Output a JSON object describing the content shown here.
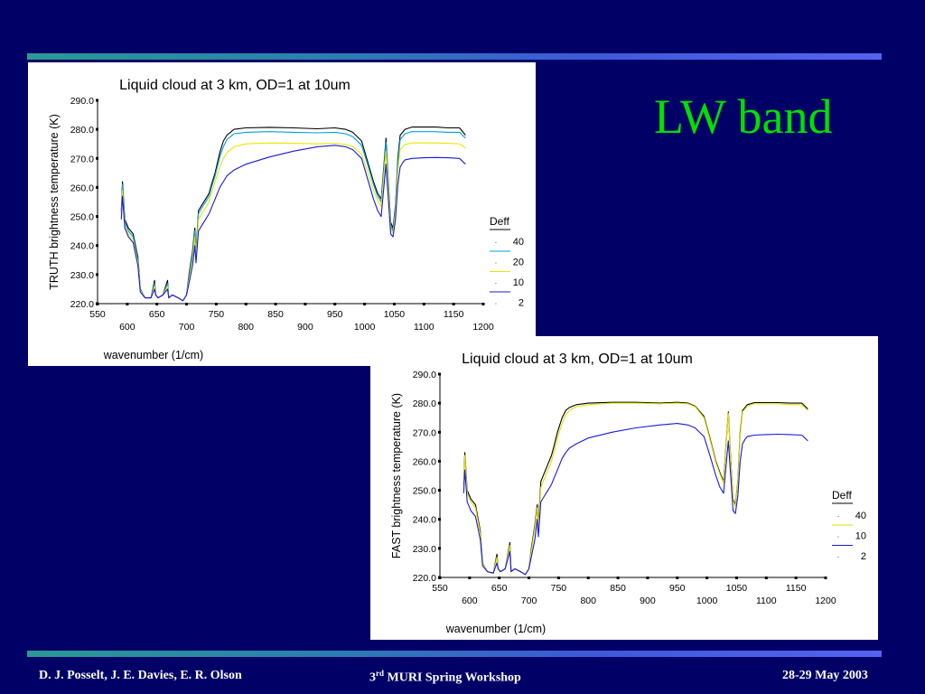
{
  "slide": {
    "title": "LW band",
    "footer_authors": "D. J. Posselt, J. E. Davies, E. R. Olson",
    "footer_workshop_ordinal": "3",
    "footer_workshop_suffix": "rd",
    "footer_workshop_rest": " MURI Spring Workshop",
    "footer_date": "28-29 May 2003",
    "accent_color": "#00e000",
    "background_color": "#000066"
  },
  "chart_data": [
    {
      "type": "line",
      "title": "Liquid cloud at 3 km, OD=1 at 10um",
      "xlabel": "wavenumber (1/cm)",
      "ylabel": "TRUTH brightness temperature (K)",
      "xlim": [
        550,
        1200
      ],
      "ylim": [
        220,
        290
      ],
      "x_ticks_upper": [
        "550",
        "650",
        "750",
        "850",
        "950",
        "1050",
        "1150"
      ],
      "x_ticks_lower": [
        "600",
        "700",
        "800",
        "900",
        "1000",
        "1100",
        "1200"
      ],
      "y_ticks": [
        "290.0",
        "280.0",
        "270.0",
        "260.0",
        "250.0",
        "240.0",
        "230.0",
        "220.0"
      ],
      "legend_title": "Deff",
      "legend_position": "right",
      "series": [
        {
          "name": "40",
          "color": "#000000",
          "x": [
            590,
            592,
            596,
            602,
            610,
            618,
            622,
            630,
            640,
            646,
            648,
            652,
            660,
            668,
            670,
            676,
            686,
            694,
            700,
            704,
            710,
            714,
            716,
            720,
            726,
            732,
            738,
            742,
            748,
            756,
            762,
            768,
            780,
            800,
            840,
            880,
            920,
            950,
            968,
            980,
            995,
            1005,
            1015,
            1022,
            1028,
            1032,
            1036,
            1040,
            1044,
            1048,
            1052,
            1056,
            1060,
            1064,
            1068,
            1080,
            1100,
            1120,
            1140,
            1160,
            1170
          ],
          "y": [
            252,
            262,
            249,
            246,
            244,
            236,
            225,
            222,
            222,
            228,
            223,
            222,
            223,
            228,
            222,
            223,
            222,
            221,
            223,
            230,
            238,
            246,
            238,
            252,
            254,
            256,
            258,
            261,
            265,
            272,
            276,
            278,
            280,
            280.5,
            280.7,
            280.5,
            280.2,
            280.5,
            280,
            279,
            276,
            269,
            262,
            258,
            256,
            266,
            277,
            262,
            248,
            246,
            254,
            270,
            278,
            279,
            280,
            280.8,
            280.8,
            280.8,
            280.5,
            280.5,
            278
          ]
        },
        {
          "name": "20",
          "color": "#00a0e0",
          "x": [
            590,
            592,
            596,
            602,
            610,
            618,
            622,
            630,
            640,
            646,
            648,
            652,
            660,
            668,
            670,
            676,
            686,
            694,
            700,
            704,
            710,
            714,
            716,
            720,
            726,
            732,
            738,
            742,
            748,
            756,
            762,
            768,
            780,
            800,
            840,
            880,
            920,
            950,
            968,
            980,
            995,
            1005,
            1015,
            1022,
            1028,
            1032,
            1036,
            1040,
            1044,
            1048,
            1052,
            1056,
            1060,
            1064,
            1068,
            1080,
            1100,
            1120,
            1140,
            1160,
            1170
          ],
          "y": [
            251,
            261,
            248,
            245,
            243,
            235,
            225,
            222,
            222,
            227,
            223,
            222,
            223,
            227,
            222,
            223,
            222,
            221,
            223,
            229,
            237,
            245,
            237,
            251,
            253,
            255,
            257,
            260,
            264,
            270.5,
            274,
            276.5,
            278.5,
            279,
            279.2,
            279,
            278.8,
            279,
            278.5,
            277.5,
            274.5,
            268,
            261,
            257,
            255,
            265,
            275.5,
            261,
            247,
            245,
            253,
            268.5,
            276.5,
            277.5,
            278.5,
            279.2,
            279.2,
            279.2,
            279,
            279,
            277
          ]
        },
        {
          "name": "10",
          "color": "#e8e800",
          "x": [
            590,
            592,
            596,
            602,
            610,
            618,
            622,
            630,
            640,
            646,
            648,
            652,
            660,
            668,
            670,
            676,
            686,
            694,
            700,
            704,
            710,
            714,
            716,
            720,
            726,
            732,
            738,
            742,
            748,
            756,
            762,
            768,
            780,
            800,
            840,
            880,
            920,
            950,
            968,
            980,
            995,
            1005,
            1015,
            1022,
            1028,
            1032,
            1036,
            1040,
            1044,
            1048,
            1052,
            1056,
            1060,
            1064,
            1068,
            1080,
            1100,
            1120,
            1140,
            1160,
            1170
          ],
          "y": [
            250,
            259,
            247,
            244,
            242,
            234,
            224.5,
            222,
            222,
            226,
            223,
            222,
            223,
            226,
            222,
            223,
            222,
            221,
            223,
            228,
            235,
            243,
            236,
            249,
            251,
            253,
            255,
            258,
            262,
            267,
            270,
            272,
            274,
            275,
            275.3,
            275.2,
            275,
            275.2,
            274.8,
            274,
            271.5,
            265.5,
            259,
            255.5,
            253.5,
            263,
            272.5,
            259.5,
            246,
            244,
            251.5,
            265.5,
            273,
            274,
            274.8,
            275.3,
            275.3,
            275.3,
            275.2,
            275,
            273.5
          ]
        },
        {
          "name": "2",
          "color": "#1818e0",
          "x": [
            590,
            592,
            596,
            602,
            610,
            618,
            622,
            630,
            640,
            646,
            648,
            652,
            660,
            668,
            670,
            676,
            686,
            694,
            700,
            704,
            710,
            714,
            716,
            720,
            726,
            732,
            738,
            742,
            748,
            756,
            762,
            768,
            780,
            800,
            840,
            880,
            920,
            950,
            968,
            980,
            995,
            1005,
            1015,
            1022,
            1028,
            1032,
            1036,
            1040,
            1044,
            1048,
            1052,
            1056,
            1060,
            1064,
            1068,
            1080,
            1100,
            1120,
            1140,
            1160,
            1170
          ],
          "y": [
            249,
            257,
            246,
            243,
            241,
            233,
            224,
            222,
            222,
            225,
            223,
            222,
            223,
            225,
            222,
            223,
            222,
            221,
            223,
            227,
            233,
            240,
            234,
            245,
            247,
            249,
            251,
            253,
            256,
            260,
            262,
            264,
            266,
            268,
            270.5,
            272.5,
            274,
            274.5,
            274,
            273,
            270,
            263,
            256,
            252,
            250,
            259,
            268,
            256,
            244,
            243,
            249,
            261,
            267,
            268.5,
            269.5,
            270,
            270.2,
            270.3,
            270.2,
            270,
            268
          ]
        }
      ]
    },
    {
      "type": "line",
      "title": "Liquid cloud at 3 km, OD=1 at 10um",
      "xlabel": "wavenumber (1/cm)",
      "ylabel": "FAST brightness temperature (K)",
      "xlim": [
        550,
        1200
      ],
      "ylim": [
        220,
        290
      ],
      "x_ticks_upper": [
        "550",
        "650",
        "750",
        "850",
        "950",
        "1050",
        "1150"
      ],
      "x_ticks_lower": [
        "600",
        "700",
        "800",
        "900",
        "1000",
        "1100",
        "1200"
      ],
      "y_ticks": [
        "290.0",
        "280.0",
        "270.0",
        "260.0",
        "250.0",
        "240.0",
        "230.0",
        "220.0"
      ],
      "legend_title": "Deff",
      "legend_position": "right",
      "series": [
        {
          "name": "40",
          "color": "#000000",
          "x": [
            590,
            592,
            596,
            602,
            610,
            618,
            622,
            630,
            640,
            646,
            648,
            652,
            660,
            668,
            670,
            676,
            686,
            694,
            700,
            704,
            710,
            714,
            716,
            720,
            726,
            732,
            738,
            742,
            748,
            756,
            762,
            768,
            780,
            800,
            840,
            880,
            920,
            950,
            968,
            980,
            995,
            1005,
            1015,
            1022,
            1028,
            1032,
            1036,
            1040,
            1044,
            1048,
            1052,
            1056,
            1060,
            1064,
            1068,
            1080,
            1100,
            1120,
            1140,
            1160,
            1170
          ],
          "y": [
            252,
            263,
            250,
            247,
            245,
            236,
            225,
            222,
            221.5,
            228,
            223,
            222,
            223,
            232,
            222,
            223,
            222,
            221,
            223,
            230,
            238,
            245,
            238,
            253,
            256,
            259,
            262,
            265,
            270,
            275,
            277.5,
            278.5,
            279.5,
            280,
            280.3,
            280.3,
            280,
            280.3,
            280,
            279,
            275.5,
            268,
            260,
            256,
            253,
            265,
            277,
            261,
            247,
            245,
            253,
            270,
            277.5,
            278.5,
            279.5,
            280.2,
            280.2,
            280.2,
            280,
            280,
            278
          ]
        },
        {
          "name": "10",
          "color": "#e0e000",
          "x": [
            590,
            592,
            596,
            602,
            610,
            618,
            622,
            630,
            640,
            646,
            648,
            652,
            660,
            668,
            670,
            676,
            686,
            694,
            700,
            704,
            710,
            714,
            716,
            720,
            726,
            732,
            738,
            742,
            748,
            756,
            762,
            768,
            780,
            800,
            840,
            880,
            920,
            950,
            968,
            980,
            995,
            1005,
            1015,
            1022,
            1028,
            1032,
            1036,
            1040,
            1044,
            1048,
            1052,
            1056,
            1060,
            1064,
            1068,
            1080,
            1100,
            1120,
            1140,
            1160,
            1170
          ],
          "y": [
            251,
            262,
            249,
            246,
            244,
            235,
            225,
            222,
            221.5,
            227,
            223,
            222,
            223,
            231,
            222,
            223,
            222,
            221,
            223,
            229,
            237,
            244,
            237,
            251,
            254,
            257,
            260,
            263,
            268,
            273,
            276,
            277.5,
            278.8,
            279.5,
            280,
            280,
            279.8,
            280,
            279.8,
            278.8,
            275,
            267.5,
            259.5,
            255.5,
            252.5,
            264.5,
            276.5,
            260.5,
            246.5,
            244.5,
            252.5,
            269,
            277,
            278,
            279,
            279.8,
            279.8,
            279.8,
            279.5,
            279.5,
            277.5
          ]
        },
        {
          "name": "2",
          "color": "#1818e0",
          "x": [
            590,
            592,
            596,
            602,
            610,
            618,
            622,
            630,
            640,
            646,
            648,
            652,
            660,
            668,
            670,
            676,
            686,
            694,
            700,
            704,
            710,
            714,
            716,
            720,
            726,
            732,
            738,
            742,
            748,
            756,
            762,
            768,
            780,
            800,
            840,
            880,
            920,
            950,
            968,
            980,
            995,
            1005,
            1015,
            1022,
            1028,
            1032,
            1036,
            1040,
            1044,
            1048,
            1052,
            1056,
            1060,
            1064,
            1068,
            1080,
            1100,
            1120,
            1140,
            1160,
            1170
          ],
          "y": [
            249,
            257,
            246,
            243,
            241,
            233,
            224,
            222,
            221.5,
            225,
            223,
            222,
            223,
            229,
            222,
            223,
            222,
            221,
            223,
            227,
            233,
            240,
            234,
            246,
            248,
            250,
            252,
            254,
            257,
            261,
            263,
            264.5,
            266,
            268,
            270,
            271.5,
            272.5,
            273,
            272.5,
            271.5,
            268.5,
            262,
            255,
            251,
            249,
            258,
            267,
            255,
            243,
            242,
            248,
            260,
            266,
            267.5,
            268.5,
            269,
            269.2,
            269.3,
            269.2,
            269,
            267
          ]
        }
      ]
    }
  ]
}
